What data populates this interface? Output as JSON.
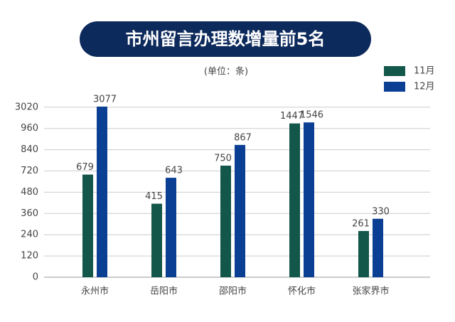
{
  "chart_data": {
    "type": "bar",
    "title": "市州留言办理数增量前5名",
    "subtitle": "(单位：条)",
    "categories": [
      "永州市",
      "岳阳市",
      "邵阳市",
      "怀化市",
      "张家界市"
    ],
    "series": [
      {
        "name": "11月",
        "color": "#13574a",
        "values": [
          679,
          415,
          750,
          1447,
          261
        ]
      },
      {
        "name": "12月",
        "color": "#0a3f93",
        "values": [
          3077,
          643,
          867,
          1546,
          330
        ]
      }
    ],
    "yticks": [
      0,
      120,
      240,
      360,
      480,
      720,
      840,
      960,
      3020
    ],
    "grid": true,
    "legend": "top-right"
  }
}
